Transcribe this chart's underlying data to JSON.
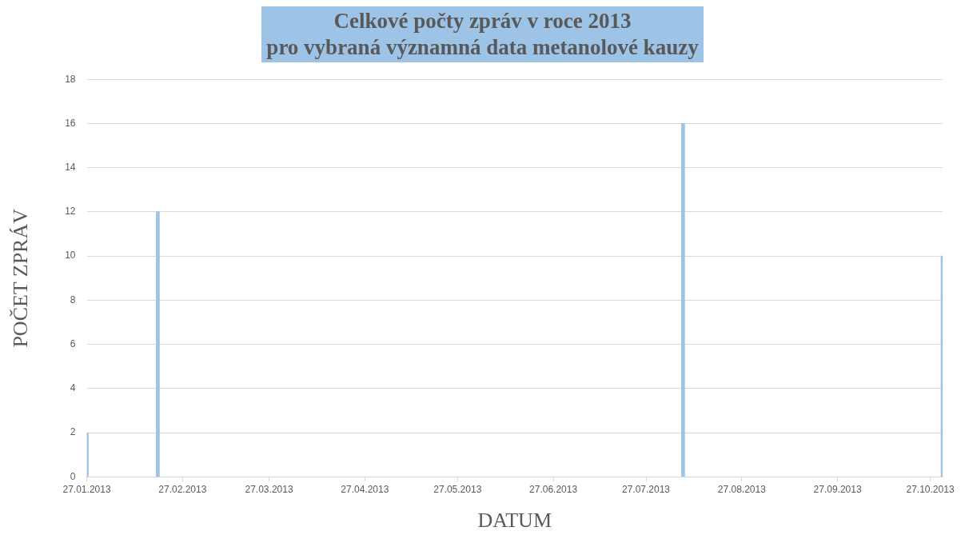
{
  "chart_data": {
    "type": "bar",
    "title": "Celkové počty zpráv v roce 2013\npro vybraná významná data metanolové kauzy",
    "xlabel": "DATUM",
    "ylabel": "POČET ZPRÁV",
    "x": [
      "2013-01-27",
      "2013-02-19",
      "2013-08-08",
      "2013-10-31"
    ],
    "values": [
      2,
      12,
      16,
      10
    ],
    "color": "#9dc3e6",
    "xlim": [
      "2013-01-27",
      "2013-10-31"
    ],
    "xticks": [
      {
        "value": "2013-01-27",
        "label": "27.01.2013"
      },
      {
        "value": "2013-02-27",
        "label": "27.02.2013"
      },
      {
        "value": "2013-03-27",
        "label": "27.03.2013"
      },
      {
        "value": "2013-04-27",
        "label": "27.04.2013"
      },
      {
        "value": "2013-05-27",
        "label": "27.05.2013"
      },
      {
        "value": "2013-06-27",
        "label": "27.06.2013"
      },
      {
        "value": "2013-07-27",
        "label": "27.07.2013"
      },
      {
        "value": "2013-08-27",
        "label": "27.08.2013"
      },
      {
        "value": "2013-09-27",
        "label": "27.09.2013"
      },
      {
        "value": "2013-10-27",
        "label": "27.10.2013"
      }
    ],
    "ylim": [
      0,
      18
    ],
    "yticks": [
      0,
      2,
      4,
      6,
      8,
      10,
      12,
      14,
      16,
      18
    ],
    "grid": "y",
    "legend": false
  }
}
